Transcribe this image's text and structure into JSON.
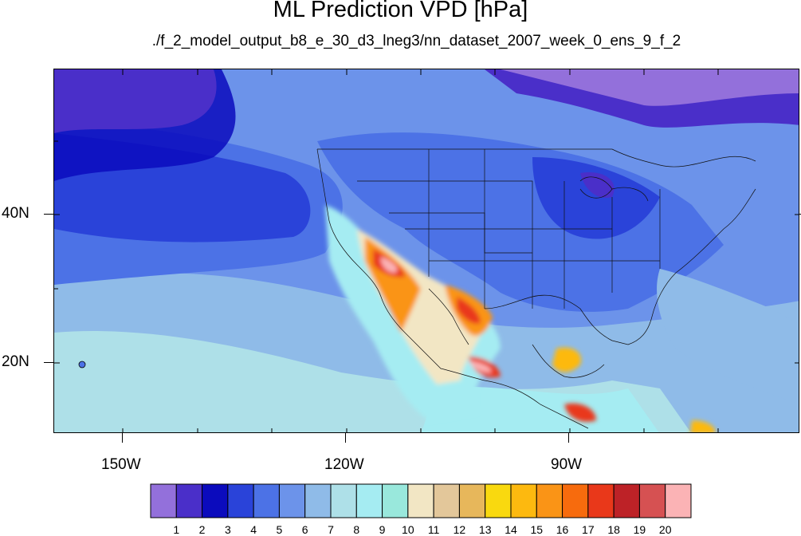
{
  "title": "ML Prediction VPD [hPa]",
  "subtitle": "./f_2_model_output_b8_e_30_d3_lneg3/nn_dataset_2007_week_0_ens_9_f_2",
  "map": {
    "lat_labels": [
      "40N",
      "20N"
    ],
    "lon_labels": [
      "150W",
      "120W",
      "90W"
    ]
  },
  "colorbar": {
    "labels": [
      "1",
      "2",
      "3",
      "4",
      "5",
      "6",
      "7",
      "8",
      "9",
      "10",
      "11",
      "12",
      "13",
      "14",
      "15",
      "16",
      "17",
      "18",
      "19",
      "20"
    ],
    "colors": [
      "#9370db",
      "#4a2fc9",
      "#0b0bbd",
      "#2a43d9",
      "#4c72e6",
      "#6c93ea",
      "#8fbbe8",
      "#aee0e8",
      "#a5ecf2",
      "#99e8dc",
      "#f2e6c4",
      "#e3c79a",
      "#e7b75b",
      "#f9d90f",
      "#fdb90f",
      "#fa9416",
      "#f76b0d",
      "#e9381a",
      "#bd2227",
      "#d65152",
      "#fbb3b5"
    ]
  }
}
